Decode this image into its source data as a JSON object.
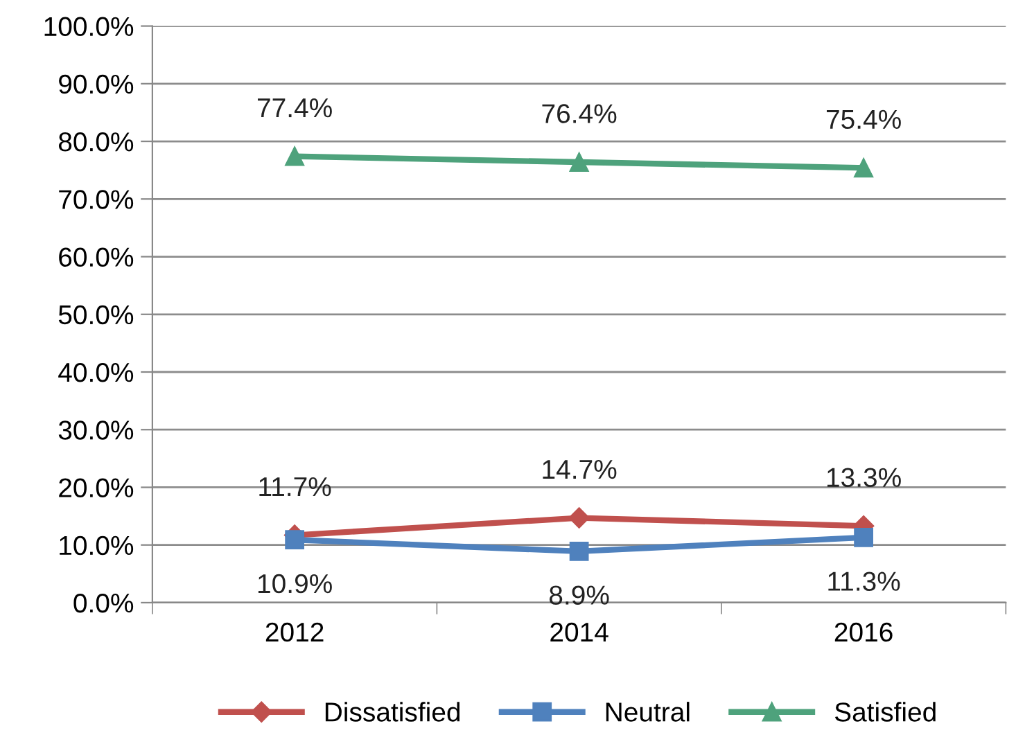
{
  "chart_data": {
    "type": "line",
    "categories": [
      "2012",
      "2014",
      "2016"
    ],
    "series": [
      {
        "name": "Dissatisfied",
        "color": "#c0504d",
        "marker": "diamond",
        "values": [
          11.7,
          14.7,
          13.3
        ],
        "value_labels": [
          "11.7%",
          "14.7%",
          "13.3%"
        ]
      },
      {
        "name": "Neutral",
        "color": "#4f81bd",
        "marker": "square",
        "values": [
          10.9,
          8.9,
          11.3
        ],
        "value_labels": [
          "10.9%",
          "8.9%",
          "11.3%"
        ]
      },
      {
        "name": "Satisfied",
        "color": "#4ea27c",
        "marker": "triangle",
        "values": [
          77.4,
          76.4,
          75.4
        ],
        "value_labels": [
          "77.4%",
          "76.4%",
          "75.4%"
        ]
      }
    ],
    "ylim": [
      0,
      100
    ],
    "yticks": [
      {
        "value": 0,
        "label": "0.0%"
      },
      {
        "value": 10,
        "label": "10.0%"
      },
      {
        "value": 20,
        "label": "20.0%"
      },
      {
        "value": 30,
        "label": "30.0%"
      },
      {
        "value": 40,
        "label": "40.0%"
      },
      {
        "value": 50,
        "label": "50.0%"
      },
      {
        "value": 60,
        "label": "60.0%"
      },
      {
        "value": 70,
        "label": "70.0%"
      },
      {
        "value": 80,
        "label": "80.0%"
      },
      {
        "value": 90,
        "label": "90.0%"
      },
      {
        "value": 100,
        "label": "100.0%"
      }
    ],
    "grid": "y",
    "legend": "bottom",
    "line_style": "solid"
  }
}
